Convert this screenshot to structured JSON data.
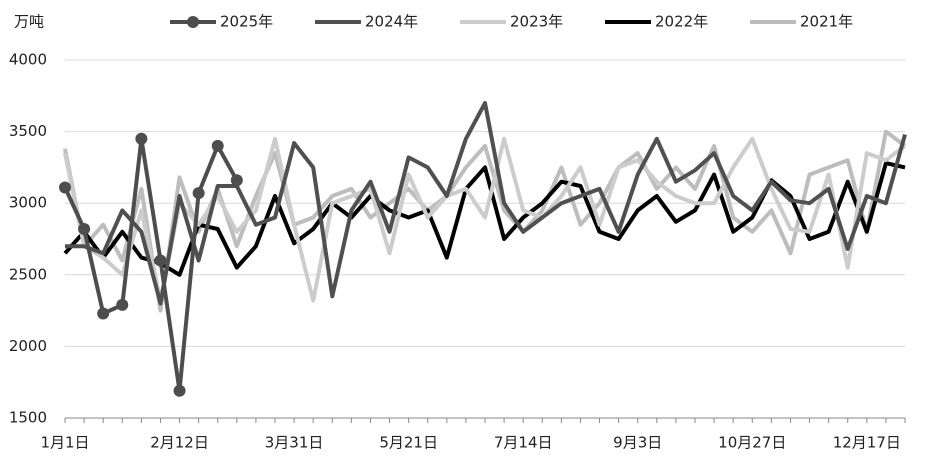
{
  "chart_data": {
    "type": "line",
    "y_label": "万吨",
    "categories": [
      "1月1日",
      null,
      null,
      null,
      null,
      null,
      "2月12日",
      null,
      null,
      null,
      null,
      null,
      "3月31日",
      null,
      null,
      null,
      null,
      null,
      "5月21日",
      null,
      null,
      null,
      null,
      null,
      "7月14日",
      null,
      null,
      null,
      null,
      null,
      "9月3日",
      null,
      null,
      null,
      null,
      null,
      "10月27日",
      null,
      null,
      null,
      null,
      null,
      "12月17日",
      null,
      null
    ],
    "ylim": [
      1500,
      4000
    ],
    "yticks": [
      1500,
      2000,
      2500,
      3000,
      3500,
      4000
    ],
    "grid": true,
    "series": [
      {
        "name": "2025年",
        "color": "#4d4d4d",
        "marker": true,
        "values": [
          3110,
          2820,
          2230,
          2290,
          3450,
          2600,
          1690,
          3070,
          3400,
          3160,
          null,
          null,
          null,
          null,
          null,
          null,
          null,
          null,
          null,
          null,
          null,
          null,
          null,
          null,
          null,
          null,
          null,
          null,
          null,
          null,
          null,
          null,
          null,
          null,
          null,
          null,
          null,
          null,
          null,
          null,
          null,
          null,
          null,
          null,
          null
        ]
      },
      {
        "name": "2024年",
        "color": "#505050",
        "marker": false,
        "values": [
          2700,
          2700,
          2650,
          2950,
          2800,
          2300,
          3050,
          2600,
          3120,
          3120,
          2850,
          2900,
          3420,
          3250,
          2350,
          2950,
          3150,
          2800,
          3320,
          3250,
          3050,
          3450,
          3700,
          3000,
          2800,
          2900,
          3000,
          3050,
          3100,
          2800,
          3200,
          3450,
          3150,
          3230,
          3350,
          3050,
          2950,
          3150,
          3020,
          3000,
          3100,
          2680,
          3050,
          3000,
          3480
        ]
      },
      {
        "name": "2023年",
        "color": "#cccccc",
        "marker": false,
        "values": [
          3350,
          2700,
          2620,
          2500,
          2950,
          2320,
          3000,
          2850,
          3050,
          2800,
          2950,
          3450,
          2850,
          2320,
          3000,
          3050,
          3100,
          2650,
          3200,
          2900,
          3050,
          3100,
          2900,
          3450,
          2950,
          2900,
          3050,
          3250,
          2850,
          3250,
          3300,
          3150,
          3050,
          3000,
          3000,
          3250,
          3450,
          3100,
          2820,
          2800,
          3200,
          2550,
          3350,
          3300,
          3400
        ]
      },
      {
        "name": "2022年",
        "color": "#000000",
        "marker": false,
        "values": [
          2650,
          2800,
          2620,
          2800,
          2620,
          2580,
          2500,
          2850,
          2820,
          2550,
          2700,
          3050,
          2720,
          2820,
          3000,
          2900,
          3050,
          2950,
          2900,
          2950,
          2620,
          3100,
          3250,
          2750,
          2900,
          3000,
          3150,
          3120,
          2800,
          2750,
          2950,
          3050,
          2870,
          2950,
          3200,
          2800,
          2900,
          3160,
          3050,
          2750,
          2800,
          3150,
          2800,
          3280,
          3250
        ]
      },
      {
        "name": "2021年",
        "color": "#bdbdbd",
        "marker": false,
        "values": [
          3380,
          2700,
          2850,
          2600,
          3100,
          2250,
          3180,
          2800,
          3100,
          2700,
          3050,
          3350,
          2850,
          2900,
          3050,
          3100,
          2900,
          3000,
          3100,
          2950,
          3050,
          3250,
          3400,
          2950,
          2800,
          2950,
          3250,
          2850,
          3000,
          3250,
          3350,
          3100,
          3250,
          3100,
          3400,
          2900,
          2800,
          2950,
          2650,
          3200,
          3250,
          3300,
          2800,
          3500,
          3400
        ]
      }
    ]
  }
}
